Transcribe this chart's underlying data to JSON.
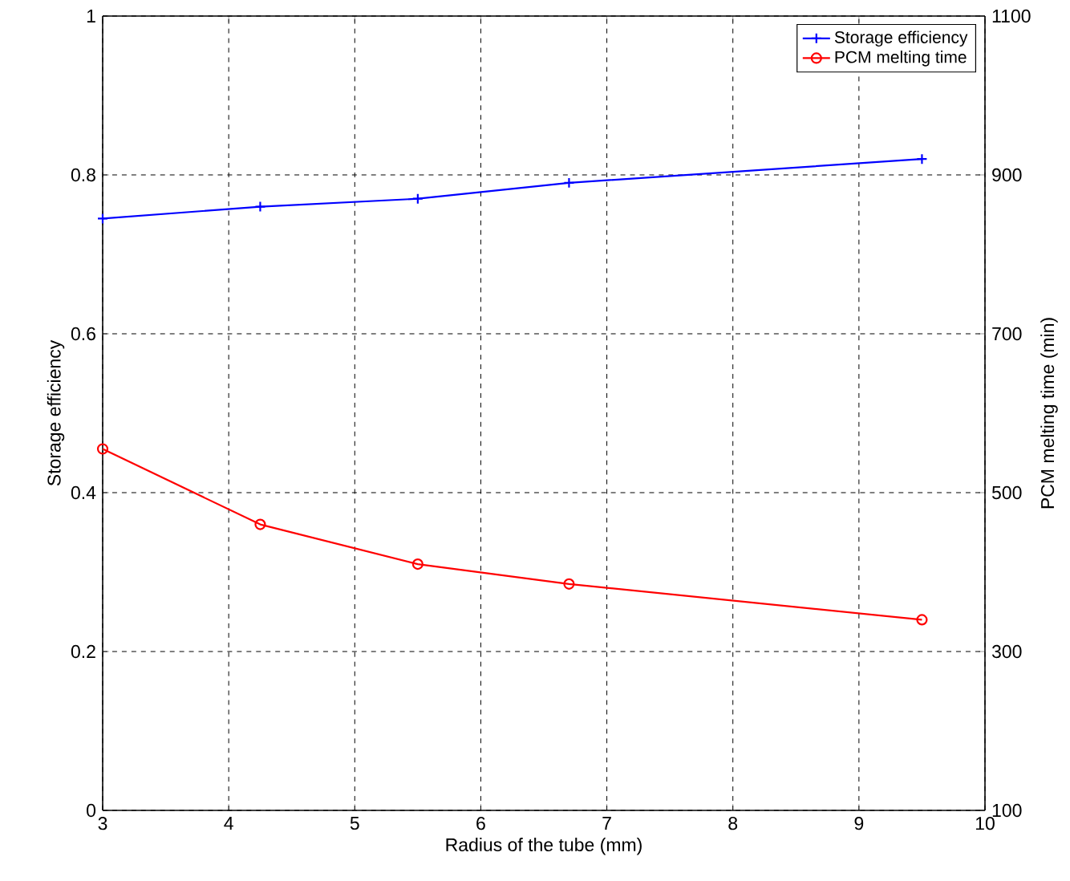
{
  "chart_data": {
    "type": "line",
    "xlabel": "Radius of the tube  (mm)",
    "ylabel": "Storage efficiency",
    "y2label": "PCM melting time (min)",
    "x": [
      3,
      4.25,
      5.5,
      6.7,
      9.5
    ],
    "series": [
      {
        "name": "Storage efficiency",
        "color": "#0000ff",
        "values": [
          0.745,
          0.76,
          0.77,
          0.79,
          0.82
        ],
        "marker": "cross"
      },
      {
        "name": "PCM melting time",
        "color": "#ff0000",
        "values": [
          555,
          460,
          410,
          385,
          340
        ],
        "marker": "circle",
        "axis": "y2"
      }
    ],
    "xlim": [
      3,
      10
    ],
    "xticks": [
      3,
      4,
      5,
      6,
      7,
      8,
      9,
      10
    ],
    "ylim": [
      0,
      1
    ],
    "yticks": [
      0,
      0.2,
      0.4,
      0.6,
      0.8,
      1
    ],
    "y2lim": [
      100,
      1100
    ],
    "y2ticks": [
      100,
      300,
      500,
      700,
      900,
      1100
    ],
    "grid": true,
    "legend": "top right",
    "line_style": "solid"
  }
}
